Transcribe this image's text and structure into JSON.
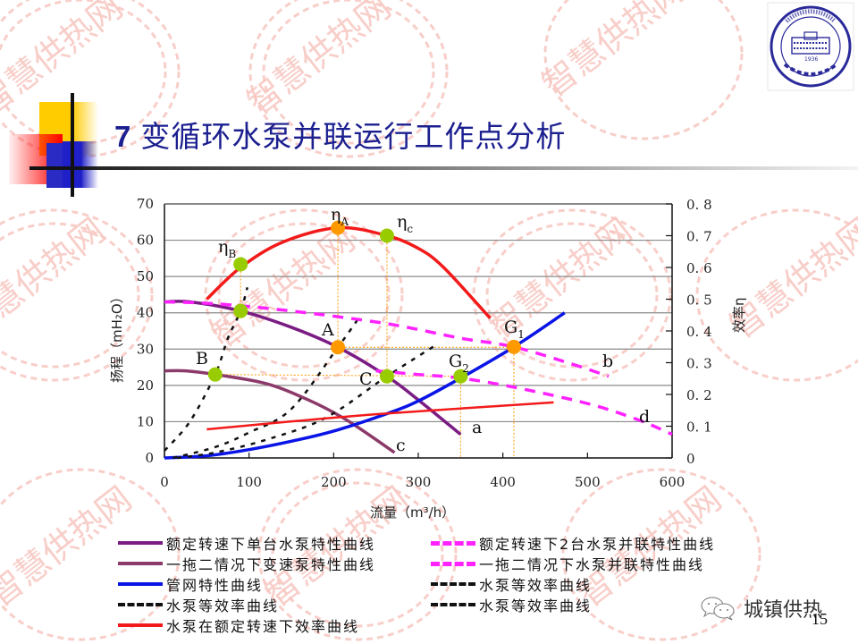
{
  "slide": {
    "title_number": "7",
    "title_text": "变循环水泵并联运行工作点分析",
    "page_number": "15",
    "watermark_text": "智慧供热网",
    "footer_brand": "城镇供热",
    "footer_icon": "wechat-icon",
    "logo": "university-seal-logo"
  },
  "colors": {
    "title": "#1b1f8f",
    "single_pump": "#7b1c84",
    "variable_speed_pump": "#8c3a6a",
    "pipe_network": "#0a14e6",
    "iso_efficiency": "#111111",
    "efficiency_curve": "#f21a1a",
    "parallel_pumps": "#ff22ff",
    "marker_green": "#99cc00",
    "marker_orange": "#ff9900",
    "guide_line": "#ff9900",
    "watermark": "#f7b8b0"
  },
  "chart_data": {
    "type": "line",
    "title": "",
    "xlabel": "流量（m³/h）",
    "ylabel": "扬程（mH₂O）",
    "ylabel_right": "效率η",
    "xlim": [
      0,
      600
    ],
    "ylim": [
      0,
      70
    ],
    "ylim_right": [
      0,
      0.8
    ],
    "x_ticks": [
      "0",
      "100",
      "200",
      "300",
      "400",
      "500",
      "600"
    ],
    "y_ticks": [
      "0",
      "10",
      "20",
      "30",
      "40",
      "50",
      "60",
      "70"
    ],
    "y_right_ticks": [
      "0",
      "0.1",
      "0.2",
      "0.3",
      "0.4",
      "0.5",
      "0.6",
      "0.7",
      "0.8"
    ],
    "grid": "horizontal",
    "series": [
      {
        "name": "额定转速下单台水泵特性曲线",
        "style": "solid",
        "color": "#7b1c84",
        "label": "a",
        "points": [
          [
            0,
            43
          ],
          [
            30,
            43
          ],
          [
            90,
            40.5
          ],
          [
            150,
            36
          ],
          [
            205,
            30.5
          ],
          [
            263,
            22.5
          ],
          [
            300,
            16
          ],
          [
            350,
            6.5
          ]
        ]
      },
      {
        "name": "一拖二情况下变速泵特性曲线",
        "style": "solid",
        "color": "#8c3a6a",
        "label": "c",
        "points": [
          [
            0,
            24
          ],
          [
            25,
            24
          ],
          [
            60,
            23
          ],
          [
            120,
            20.5
          ],
          [
            170,
            16
          ],
          [
            215,
            10.5
          ],
          [
            272,
            1.5
          ]
        ]
      },
      {
        "name": "管网特性曲线",
        "style": "solid",
        "color": "#0a14e6",
        "points": [
          [
            0,
            0
          ],
          [
            50,
            0.6
          ],
          [
            100,
            2.3
          ],
          [
            150,
            4.6
          ],
          [
            200,
            7.4
          ],
          [
            263,
            12.2
          ],
          [
            300,
            15.7
          ],
          [
            350,
            22
          ],
          [
            413,
            30.6
          ],
          [
            473,
            40
          ]
        ]
      },
      {
        "name": "水泵等效率曲线 (B)",
        "style": "dotted",
        "color": "#111111",
        "points": [
          [
            0,
            2
          ],
          [
            30,
            10
          ],
          [
            60,
            23
          ],
          [
            75,
            33
          ],
          [
            90,
            40.5
          ],
          [
            98,
            47
          ]
        ]
      },
      {
        "name": "水泵等效率曲线 (A)",
        "style": "dotted",
        "color": "#111111",
        "points": [
          [
            10,
            0
          ],
          [
            60,
            3
          ],
          [
            100,
            7
          ],
          [
            150,
            13.5
          ],
          [
            205,
            30.5
          ],
          [
            228,
            38
          ]
        ]
      },
      {
        "name": "水泵等效率曲线 (C)",
        "style": "dotted",
        "color": "#111111",
        "points": [
          [
            15,
            0
          ],
          [
            60,
            1.5
          ],
          [
            120,
            5
          ],
          [
            190,
            11
          ],
          [
            263,
            22.5
          ],
          [
            320,
            31
          ]
        ]
      },
      {
        "name": "水泵在额定转速下效率曲线",
        "style": "solid",
        "color": "#f21a1a",
        "axis": "right",
        "points": [
          [
            50,
            0.5
          ],
          [
            90,
            0.6
          ],
          [
            140,
            0.68
          ],
          [
            205,
            0.725
          ],
          [
            263,
            0.7
          ],
          [
            300,
            0.66
          ],
          [
            330,
            0.6
          ],
          [
            385,
            0.44
          ]
        ]
      },
      {
        "name": "效率曲线(一拖二)",
        "style": "solid",
        "color": "#f21a1a",
        "axis": "right",
        "points": [
          [
            50,
            0.09
          ],
          [
            150,
            0.115
          ],
          [
            263,
            0.14
          ],
          [
            460,
            0.175
          ]
        ]
      },
      {
        "name": "额定转速下2台水泵并联特性曲线",
        "style": "dashed",
        "color": "#ff22ff",
        "label": "b",
        "points": [
          [
            0,
            43
          ],
          [
            60,
            42.5
          ],
          [
            150,
            40.5
          ],
          [
            263,
            37
          ],
          [
            350,
            33
          ],
          [
            413,
            30.6
          ],
          [
            480,
            26
          ],
          [
            525,
            22.5
          ]
        ]
      },
      {
        "name": "一拖二情况下水泵并联特性曲线",
        "style": "dashed",
        "color": "#ff22ff",
        "label": "d",
        "points": [
          [
            250,
            24
          ],
          [
            300,
            23
          ],
          [
            350,
            22
          ],
          [
            413,
            19.5
          ],
          [
            500,
            15
          ],
          [
            560,
            10.5
          ],
          [
            600,
            6.5
          ]
        ]
      }
    ],
    "points": [
      {
        "label": "ηB",
        "x": 90,
        "y_right": 0.61,
        "color": "#99cc00"
      },
      {
        "label": "ηA",
        "x": 205,
        "y_right": 0.725,
        "color": "#ff9900"
      },
      {
        "label": "ηc",
        "x": 263,
        "y_right": 0.7,
        "color": "#99cc00"
      },
      {
        "label": "",
        "x": 90,
        "y": 40.5,
        "color": "#99cc00"
      },
      {
        "label": "A",
        "x": 205,
        "y": 30.5,
        "color": "#ff9900"
      },
      {
        "label": "B",
        "x": 60,
        "y": 23,
        "color": "#99cc00"
      },
      {
        "label": "C",
        "x": 263,
        "y": 22.5,
        "color": "#99cc00"
      },
      {
        "label": "G2",
        "x": 350,
        "y": 22.5,
        "color": "#99cc00"
      },
      {
        "label": "G1",
        "x": 413,
        "y": 30.6,
        "color": "#ff9900"
      }
    ],
    "curve_labels": [
      "a",
      "b",
      "c",
      "d"
    ]
  },
  "legend": {
    "left": [
      {
        "label": "额定转速下单台水泵特性曲线",
        "style": "solid",
        "color": "#7b1c84"
      },
      {
        "label": "一拖二情况下变速泵特性曲线",
        "style": "solid",
        "color": "#8c3a6a"
      },
      {
        "label": "管网特性曲线",
        "style": "solid",
        "color": "#0a14e6"
      },
      {
        "label": "水泵等效率曲线",
        "style": "dotted",
        "color": "#111111"
      },
      {
        "label": "水泵在额定转速下效率曲线",
        "style": "solid",
        "color": "#f21a1a"
      }
    ],
    "right": [
      {
        "label": "额定转速下2台水泵并联特性曲线",
        "style": "dashed",
        "color": "#ff22ff"
      },
      {
        "label": "一拖二情况下水泵并联特性曲线",
        "style": "dashed",
        "color": "#ff22ff"
      },
      {
        "label": "水泵等效率曲线",
        "style": "dotted",
        "color": "#111111"
      },
      {
        "label": "水泵等效率曲线",
        "style": "dotted",
        "color": "#111111"
      }
    ]
  }
}
